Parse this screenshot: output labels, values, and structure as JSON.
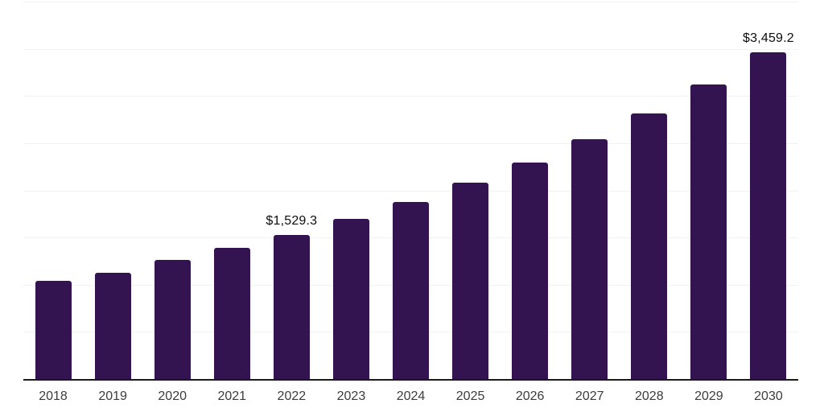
{
  "chart_data": {
    "type": "bar",
    "title": "",
    "xlabel": "",
    "ylabel": "",
    "categories": [
      "2018",
      "2019",
      "2020",
      "2021",
      "2022",
      "2023",
      "2024",
      "2025",
      "2026",
      "2027",
      "2028",
      "2029",
      "2030"
    ],
    "values": [
      1040,
      1128,
      1261,
      1390,
      1529.3,
      1697,
      1873,
      2077,
      2293,
      2544,
      2812,
      3125,
      3459.2
    ],
    "ylim": [
      0,
      4000
    ],
    "gridline_step": 500,
    "grid": true,
    "legend": false,
    "labeled_points": [
      {
        "category": "2022",
        "label": "$1,529.3"
      },
      {
        "category": "2030",
        "label": "$3,459.2"
      }
    ],
    "colors": {
      "bar": "#341450",
      "gridline": "#f2f2f2",
      "axis_line": "#1a1a1a",
      "tick_label": "#3c3c3c",
      "value_label": "#0d0d0d",
      "background": "#ffffff"
    }
  }
}
